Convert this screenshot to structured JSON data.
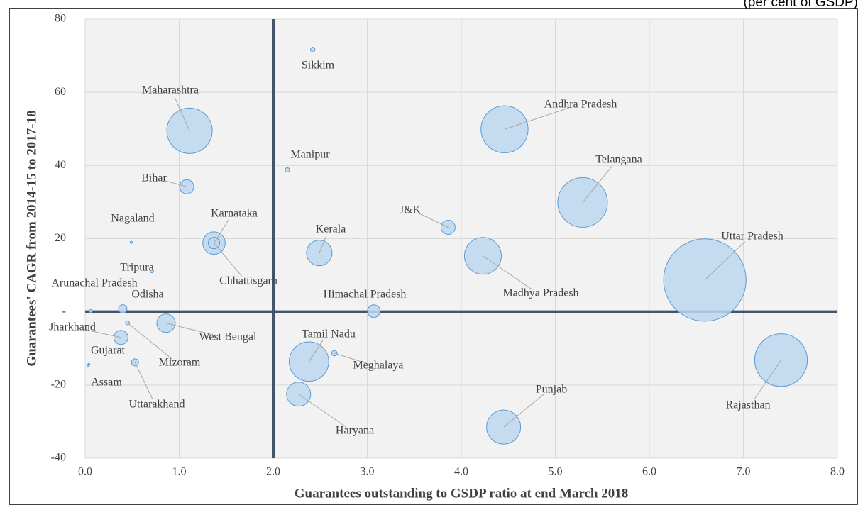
{
  "chart_data": {
    "type": "bubble",
    "subtitle": "(per cent of GSDP)",
    "xlabel": "Guarantees outstanding to GSDP ratio at end March 2018",
    "ylabel": "Guarantees' CAGR from 2014-15 to 2017-18",
    "xlim": [
      0,
      8
    ],
    "ylim": [
      -40,
      80
    ],
    "xticks": [
      {
        "value": 0,
        "label": "0.0"
      },
      {
        "value": 1,
        "label": "1.0"
      },
      {
        "value": 2,
        "label": "2.0"
      },
      {
        "value": 3,
        "label": "3.0"
      },
      {
        "value": 4,
        "label": "4.0"
      },
      {
        "value": 5,
        "label": "5.0"
      },
      {
        "value": 6,
        "label": "6.0"
      },
      {
        "value": 7,
        "label": "7.0"
      },
      {
        "value": 8,
        "label": "8.0"
      }
    ],
    "yticks": [
      80,
      60,
      40,
      20,
      {
        "value": 0,
        "label": "-"
      },
      -20,
      -40
    ],
    "grid": true,
    "vline": 2,
    "hline": 0,
    "color": "#bdd7ee",
    "edge_color": "#5b9bd5",
    "points": [
      {
        "label": "Maharashtra",
        "x": 1.11,
        "y": 49.5,
        "size": 41
      },
      {
        "label": "Andhra Pradesh",
        "x": 4.46,
        "y": 49.9,
        "size": 44
      },
      {
        "label": "Sikkim",
        "x": 2.42,
        "y": 71.7,
        "size": 0.4
      },
      {
        "label": "Manipur",
        "x": 2.15,
        "y": 38.8,
        "size": 0.4
      },
      {
        "label": "Bihar",
        "x": 1.08,
        "y": 34.2,
        "size": 4
      },
      {
        "label": "Telangana",
        "x": 5.29,
        "y": 29.9,
        "size": 49
      },
      {
        "label": "Nagaland",
        "x": 0.49,
        "y": 19.0,
        "size": 0.1
      },
      {
        "label": "Karnataka",
        "x": 1.37,
        "y": 18.8,
        "size": 10
      },
      {
        "label": "Chhattisgarh",
        "x": 1.37,
        "y": 18.8,
        "size": 2.6
      },
      {
        "label": "J&K",
        "x": 3.86,
        "y": 23.1,
        "size": 4
      },
      {
        "label": "Kerala",
        "x": 2.49,
        "y": 16.1,
        "size": 13
      },
      {
        "label": "Madhya Pradesh",
        "x": 4.23,
        "y": 15.3,
        "size": 27
      },
      {
        "label": "Uttar Pradesh",
        "x": 6.59,
        "y": 8.7,
        "size": 135
      },
      {
        "label": "Tripura",
        "x": 0.71,
        "y": 11.1,
        "size": 0.2
      },
      {
        "label": "Arunachal Pradesh",
        "x": 0.06,
        "y": 0.2,
        "size": 0.2
      },
      {
        "label": "Odisha",
        "x": 0.4,
        "y": 0.8,
        "size": 1.4
      },
      {
        "label": "Himachal Pradesh",
        "x": 3.07,
        "y": 0.2,
        "size": 3.2
      },
      {
        "label": "West Bengal",
        "x": 0.86,
        "y": -3.1,
        "size": 6.8
      },
      {
        "label": "Jharkhand",
        "x": 0.38,
        "y": -7.0,
        "size": 4
      },
      {
        "label": "Meghalaya",
        "x": 2.65,
        "y": -11.3,
        "size": 0.6
      },
      {
        "label": "Tamil Nadu",
        "x": 2.38,
        "y": -13.6,
        "size": 31
      },
      {
        "label": "Rajasthan",
        "x": 7.4,
        "y": -13.2,
        "size": 55
      },
      {
        "label": "Mizoram",
        "x": 0.45,
        "y": -3.0,
        "size": 0.3
      },
      {
        "label": "Gujarat",
        "x": 0.04,
        "y": -14.4,
        "size": 0.1
      },
      {
        "label": "Haryana",
        "x": 2.27,
        "y": -22.5,
        "size": 11.6
      },
      {
        "label": "Punjab",
        "x": 4.45,
        "y": -31.5,
        "size": 23
      },
      {
        "label": "Assam",
        "x": 0.03,
        "y": -14.6,
        "size": 0.1
      },
      {
        "label": "Uttarakhand",
        "x": 0.53,
        "y": -13.8,
        "size": 1
      }
    ]
  }
}
